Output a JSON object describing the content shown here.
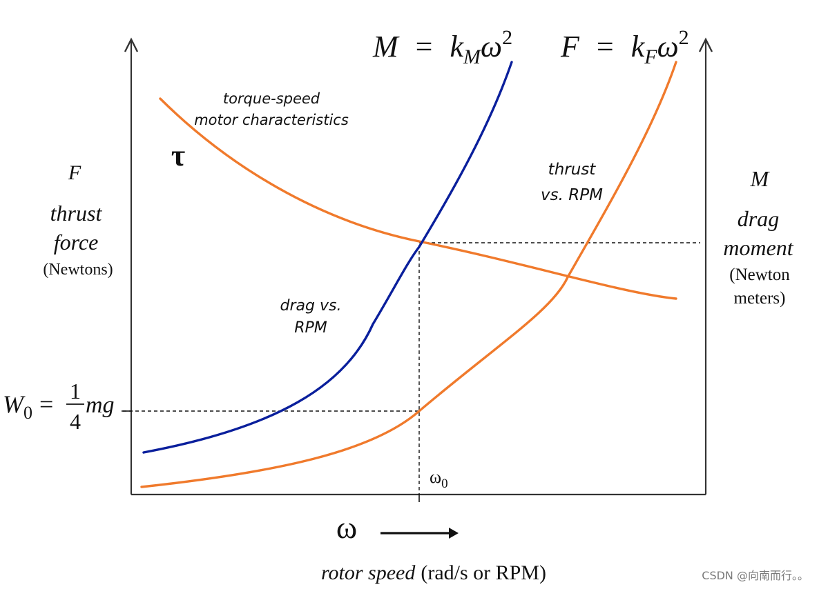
{
  "colors": {
    "orange": "#F07A2C",
    "blue": "#0A1F9C",
    "axis": "#222222",
    "text": "#111111",
    "watermark": "#7a7a7a"
  },
  "formulas": {
    "moment": {
      "lhs": "M",
      "eq": "=",
      "k": "k",
      "sub": "M",
      "omega": "ω",
      "exp": "2"
    },
    "force": {
      "lhs": "F",
      "eq": "=",
      "k": "k",
      "sub": "F",
      "omega": "ω",
      "exp": "2"
    }
  },
  "left_axis": {
    "symbol": "F",
    "line1": "thrust",
    "line2": "force",
    "unit": "(Newtons)",
    "tau": "τ"
  },
  "right_axis": {
    "symbol": "M",
    "line1": "drag",
    "line2": "moment",
    "unit1": "(Newton",
    "unit2": "meters)"
  },
  "curve_labels": {
    "torque_1": "torque-speed",
    "torque_2": "motor characteristics",
    "thrust_1": "thrust",
    "thrust_2": "vs. RPM",
    "drag_1": "drag vs.",
    "drag_2": "RPM"
  },
  "hover_weight": {
    "w": "W",
    "w_sub": "0",
    "eq": "=",
    "num": "1",
    "den": "4",
    "mg": "mg"
  },
  "omega_zero": {
    "base": "ω",
    "sub": "0"
  },
  "x_axis": {
    "omega": "ω",
    "label_italic": "rotor speed",
    "label_unit": "(rad/s or RPM)"
  },
  "watermark": "CSDN @向南而行。。"
}
